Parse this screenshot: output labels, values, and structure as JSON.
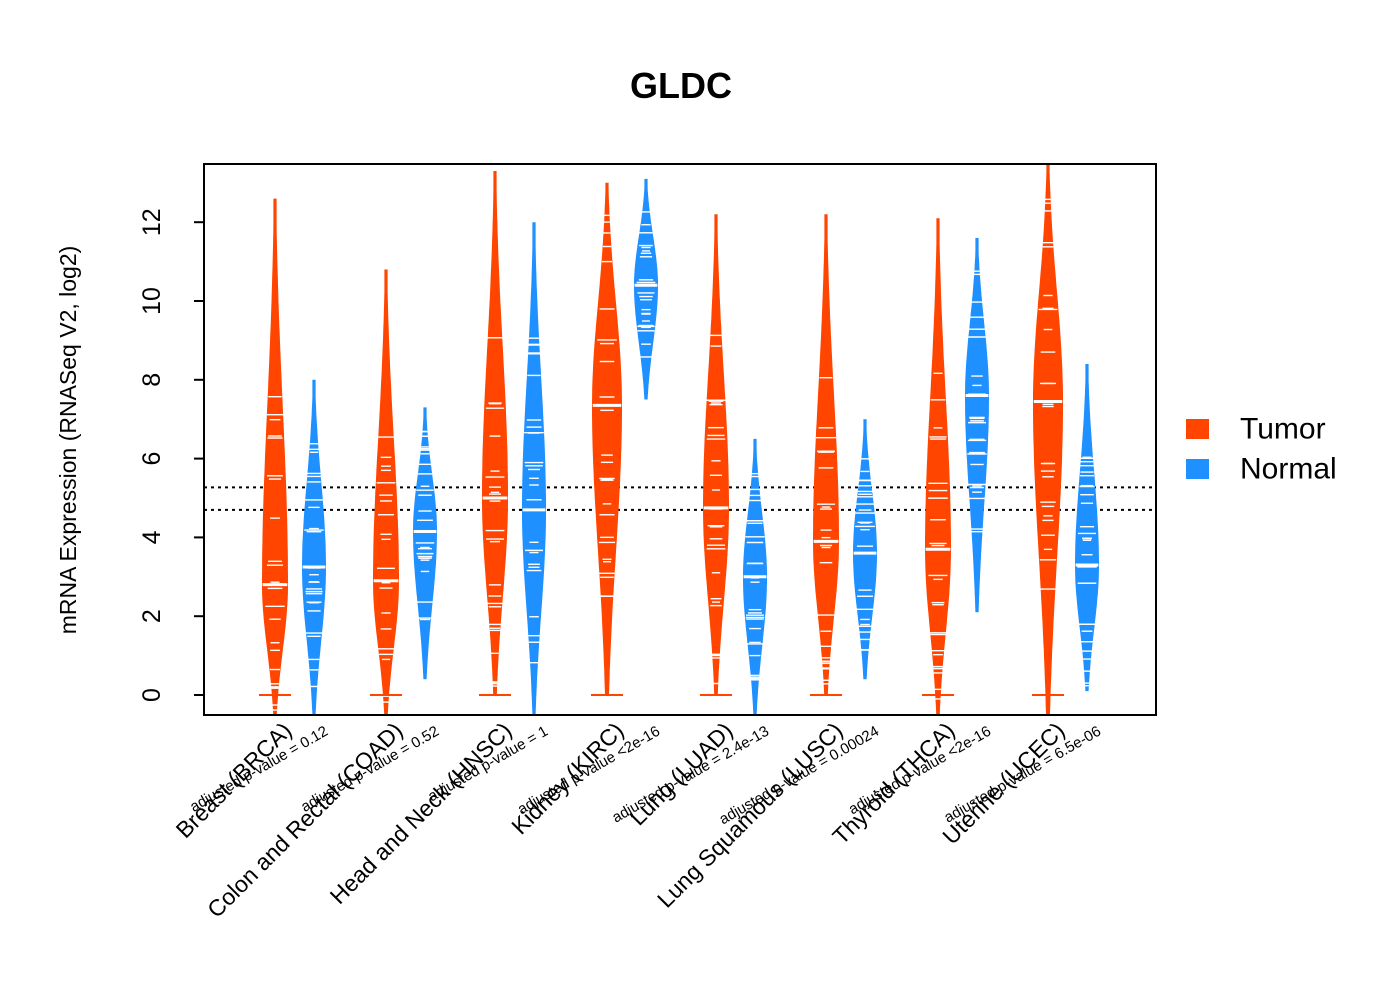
{
  "chart_data": {
    "type": "violin",
    "title": "GLDC",
    "xlabel": "",
    "ylabel": "mRNA Expression (RNASeq V2, log2)",
    "ylim": [
      -0.5,
      13.5
    ],
    "yticks": [
      0,
      2,
      4,
      6,
      8,
      10,
      12
    ],
    "ytick_labels": [
      "0",
      "2",
      "4",
      "6",
      "8",
      "10",
      "12"
    ],
    "reference_lines": [
      5.27,
      4.7
    ],
    "legend": {
      "position": "right",
      "entries": [
        {
          "name": "Tumor",
          "color": "#FF4500"
        },
        {
          "name": "Normal",
          "color": "#1E90FF"
        }
      ]
    },
    "categories": [
      {
        "label": "Breast (BRCA)",
        "pvalue": "adjusted p-value = 0.12",
        "tumor": {
          "min": -0.5,
          "max": 12.6,
          "median": 2.8
        },
        "normal": {
          "min": -0.5,
          "max": 8.0,
          "median": 3.25
        }
      },
      {
        "label": "Colon and Rectal (COAD)",
        "pvalue": "adjusted p-value = 0.52",
        "tumor": {
          "min": -0.5,
          "max": 10.8,
          "median": 2.9
        },
        "normal": {
          "min": 0.4,
          "max": 7.3,
          "median": 4.15
        }
      },
      {
        "label": "Head and Neck (HNSC)",
        "pvalue": "adjusted p-value = 1",
        "tumor": {
          "min": 0.0,
          "max": 13.3,
          "median": 5.0
        },
        "normal": {
          "min": -0.5,
          "max": 12.0,
          "median": 4.7
        }
      },
      {
        "label": "Kidney (KIRC)",
        "pvalue": "adjusted p-value <2e-16",
        "tumor": {
          "min": 0.0,
          "max": 13.0,
          "median": 7.35
        },
        "normal": {
          "min": 7.5,
          "max": 13.1,
          "median": 10.4
        }
      },
      {
        "label": "Lung (LUAD)",
        "pvalue": "adjusted p-value = 2.4e-13",
        "tumor": {
          "min": 0.0,
          "max": 12.2,
          "median": 4.75
        },
        "normal": {
          "min": -0.5,
          "max": 6.5,
          "median": 3.0
        }
      },
      {
        "label": "Lung Squamous (LUSC)",
        "pvalue": "adjusted p-value = 0.00024",
        "tumor": {
          "min": 0.0,
          "max": 12.2,
          "median": 3.9
        },
        "normal": {
          "min": 0.4,
          "max": 7.0,
          "median": 3.6
        }
      },
      {
        "label": "Thyroid (THCA)",
        "pvalue": "adjusted p-value <2e-16",
        "tumor": {
          "min": -0.5,
          "max": 12.1,
          "median": 3.7
        },
        "normal": {
          "min": 2.1,
          "max": 11.6,
          "median": 7.6
        }
      },
      {
        "label": "Uterine (UCEC)",
        "pvalue": "adjusted p-value = 6.5e-06",
        "tumor": {
          "min": -0.5,
          "max": 13.5,
          "median": 7.45
        },
        "normal": {
          "min": 0.1,
          "max": 8.4,
          "median": 3.3
        }
      }
    ]
  }
}
